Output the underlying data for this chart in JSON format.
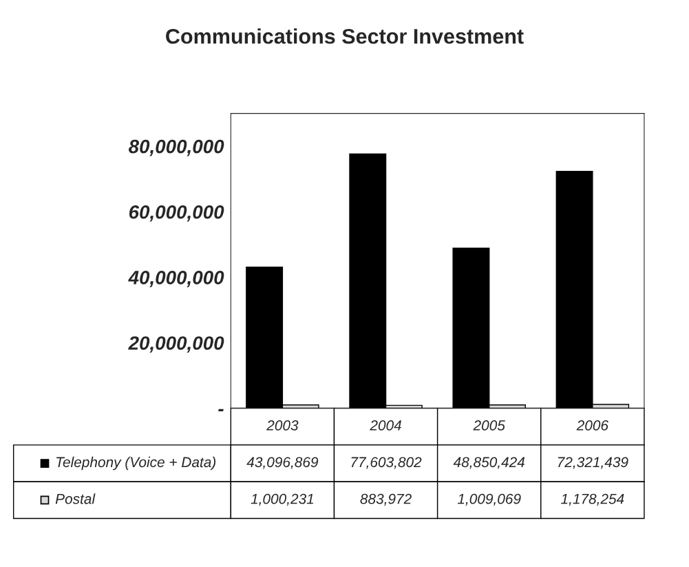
{
  "chart_data": {
    "type": "bar",
    "title": "Communications Sector Investment",
    "categories": [
      "2003",
      "2004",
      "2005",
      "2006"
    ],
    "series": [
      {
        "name": "Telephony (Voice + Data)",
        "color": "#000000",
        "values": [
          43096869,
          77603802,
          48850424,
          72321439
        ],
        "value_labels": [
          "43,096,869",
          "77,603,802",
          "48,850,424",
          "72,321,439"
        ]
      },
      {
        "name": "Postal",
        "color": "#d9d9d9",
        "values": [
          1000231,
          883972,
          1009069,
          1178254
        ],
        "value_labels": [
          "1,000,231",
          "883,972",
          "1,009,069",
          "1,178,254"
        ]
      }
    ],
    "ylim": [
      0,
      90000000
    ],
    "yticks": [
      {
        "value": 0,
        "label": "-"
      },
      {
        "value": 20000000,
        "label": "20,000,000"
      },
      {
        "value": 40000000,
        "label": "40,000,000"
      },
      {
        "value": 60000000,
        "label": "60,000,000"
      },
      {
        "value": 80000000,
        "label": "80,000,000"
      }
    ],
    "legend": "bottom"
  }
}
